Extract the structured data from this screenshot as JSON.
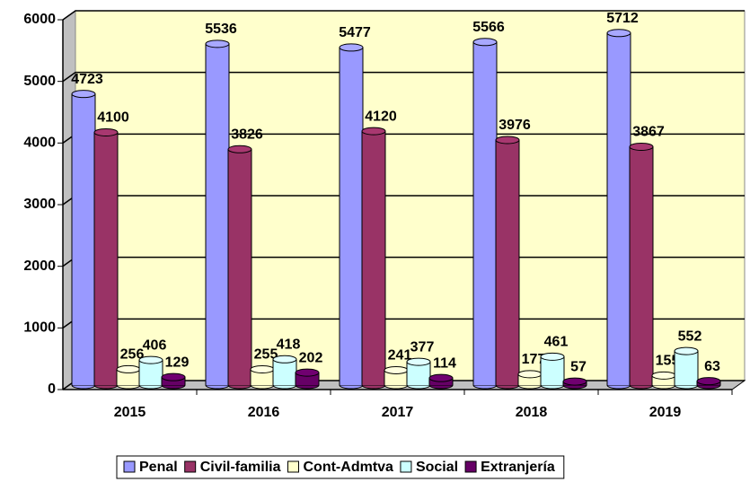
{
  "chart_data": {
    "type": "bar3d",
    "categories": [
      "2015",
      "2016",
      "2017",
      "2018",
      "2019"
    ],
    "series": [
      {
        "name": "Penal",
        "color": "#9999ff",
        "values": [
          4723,
          5536,
          5477,
          5566,
          5712
        ]
      },
      {
        "name": "Civil-familia",
        "color": "#993366",
        "values": [
          4100,
          3826,
          4120,
          3976,
          3867
        ]
      },
      {
        "name": "Cont-Admtva",
        "color": "#ffffcc",
        "values": [
          256,
          255,
          241,
          177,
          155
        ]
      },
      {
        "name": "Social",
        "color": "#ccffff",
        "values": [
          406,
          418,
          377,
          461,
          552
        ]
      },
      {
        "name": "Extranjería",
        "color": "#660066",
        "values": [
          129,
          202,
          114,
          57,
          63
        ]
      }
    ],
    "ylim": [
      0,
      6000
    ],
    "yticks": [
      0,
      1000,
      2000,
      3000,
      4000,
      5000,
      6000
    ],
    "grid": true,
    "legend": "bottom",
    "wall_color": "#ffffcc"
  }
}
